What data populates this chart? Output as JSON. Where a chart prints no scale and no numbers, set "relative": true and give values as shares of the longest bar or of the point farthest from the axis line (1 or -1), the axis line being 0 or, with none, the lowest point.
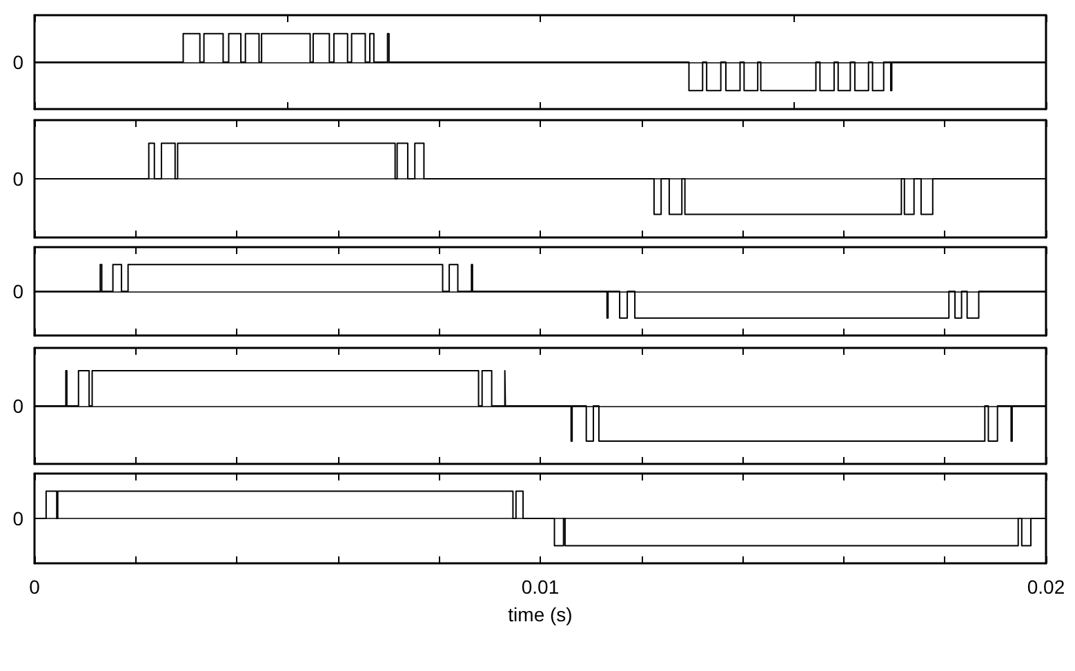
{
  "chart_data": [
    {
      "type": "step",
      "relative": true,
      "xlim": [
        0,
        0.02
      ],
      "xticks": [
        0,
        {
          "value": 0.005,
          "label": null
        },
        0.01,
        {
          "value": 0.015,
          "label": null
        },
        0.02
      ],
      "tick_labels": "y",
      "annotations": [
        "0"
      ],
      "series": [
        {
          "color": "#000000",
          "x": [
            0,
            0.00294,
            0.00327,
            0.00335,
            0.00373,
            0.00384,
            0.00408,
            0.00417,
            0.00444,
            0.00449,
            0.00545,
            0.00551,
            0.00583,
            0.00592,
            0.00619,
            0.00627,
            0.00654,
            0.00663,
            0.00671,
            0.00698,
            0.00701,
            0.01294,
            0.01321,
            0.01329,
            0.01357,
            0.01367,
            0.01395,
            0.01403,
            0.0143,
            0.01436,
            0.01545,
            0.01553,
            0.01581,
            0.01589,
            0.01613,
            0.01622,
            0.01649,
            0.01657,
            0.01679,
            0.01693,
            0.01695,
            0.02
          ],
          "values": [
            0,
            1,
            0,
            1,
            0,
            1,
            0,
            1,
            0,
            1,
            0,
            1,
            0,
            1,
            0,
            1,
            0,
            1,
            0,
            1,
            0,
            -1,
            0,
            -1,
            0,
            -1,
            0,
            -1,
            0,
            -1,
            0,
            -1,
            0,
            -1,
            0,
            -1,
            0,
            -1,
            0,
            -1,
            0,
            0
          ]
        }
      ]
    },
    {
      "type": "step",
      "relative": true,
      "xlim": [
        0,
        0.02
      ],
      "xticks": [
        0,
        {
          "value": 0.002,
          "label": null
        },
        {
          "value": 0.004,
          "label": null
        },
        {
          "value": 0.006,
          "label": null
        },
        {
          "value": 0.008,
          "label": null
        },
        0.01,
        {
          "value": 0.012,
          "label": null
        },
        {
          "value": 0.014,
          "label": null
        },
        {
          "value": 0.016,
          "label": null
        },
        {
          "value": 0.018,
          "label": null
        },
        0.02
      ],
      "tick_labels": "y",
      "annotations": [
        "0"
      ],
      "series": [
        {
          "color": "#000000",
          "x": [
            0,
            0.00226,
            0.00237,
            0.00251,
            0.00278,
            0.00283,
            0.00713,
            0.00717,
            0.00738,
            0.00752,
            0.0077,
            0.01225,
            0.01239,
            0.01255,
            0.0128,
            0.01286,
            0.01714,
            0.0172,
            0.01739,
            0.01753,
            0.01776,
            0.02
          ],
          "values": [
            0,
            1,
            0,
            1,
            0,
            1,
            0,
            1,
            0,
            1,
            0,
            -1,
            0,
            -1,
            0,
            -1,
            0,
            -1,
            0,
            -1,
            0,
            0
          ]
        }
      ]
    },
    {
      "type": "step",
      "relative": true,
      "xlim": [
        0,
        0.02
      ],
      "xticks": [
        0,
        {
          "value": 0.002,
          "label": null
        },
        {
          "value": 0.004,
          "label": null
        },
        {
          "value": 0.006,
          "label": null
        },
        {
          "value": 0.008,
          "label": null
        },
        0.01,
        {
          "value": 0.012,
          "label": null
        },
        {
          "value": 0.014,
          "label": null
        },
        {
          "value": 0.016,
          "label": null
        },
        {
          "value": 0.018,
          "label": null
        },
        0.02
      ],
      "tick_labels": "y",
      "annotations": [
        "0"
      ],
      "series": [
        {
          "color": "#000000",
          "x": [
            0,
            0.0013,
            0.00133,
            0.00155,
            0.00172,
            0.00185,
            0.00807,
            0.0082,
            0.00837,
            0.00864,
            0.00866,
            0.01132,
            0.01134,
            0.01157,
            0.01172,
            0.01187,
            0.01808,
            0.0182,
            0.01833,
            0.01844,
            0.01867,
            0.02
          ],
          "values": [
            0,
            1,
            0,
            1,
            0,
            1,
            0,
            1,
            0,
            1,
            0,
            -1,
            0,
            -1,
            0,
            -1,
            0,
            -1,
            0,
            -1,
            0,
            0
          ]
        }
      ]
    },
    {
      "type": "step",
      "relative": true,
      "xlim": [
        0,
        0.02
      ],
      "xticks": [
        0,
        {
          "value": 0.002,
          "label": null
        },
        {
          "value": 0.004,
          "label": null
        },
        {
          "value": 0.006,
          "label": null
        },
        {
          "value": 0.008,
          "label": null
        },
        0.01,
        {
          "value": 0.012,
          "label": null
        },
        {
          "value": 0.014,
          "label": null
        },
        {
          "value": 0.016,
          "label": null
        },
        {
          "value": 0.018,
          "label": null
        },
        0.02
      ],
      "tick_labels": "y",
      "annotations": [
        "0"
      ],
      "series": [
        {
          "color": "#000000",
          "x": [
            0,
            0.00062,
            0.00064,
            0.00087,
            0.00108,
            0.00114,
            0.00878,
            0.00885,
            0.00904,
            0.0093,
            0.00931,
            0.01061,
            0.01063,
            0.01091,
            0.01105,
            0.01116,
            0.01879,
            0.01886,
            0.01904,
            0.01931,
            0.01933,
            0.02
          ],
          "values": [
            0,
            1,
            0,
            1,
            0,
            1,
            0,
            1,
            0,
            1,
            0,
            -1,
            0,
            -1,
            0,
            -1,
            0,
            -1,
            0,
            -1,
            0,
            0
          ]
        }
      ]
    },
    {
      "type": "step",
      "relative": true,
      "xlabel": "time (s)",
      "xlim": [
        0,
        0.02
      ],
      "xticks": [
        0,
        {
          "value": 0.002,
          "label": null
        },
        {
          "value": 0.004,
          "label": null
        },
        {
          "value": 0.006,
          "label": null
        },
        {
          "value": 0.008,
          "label": null
        },
        0.01,
        {
          "value": 0.012,
          "label": null
        },
        {
          "value": 0.014,
          "label": null
        },
        {
          "value": 0.016,
          "label": null
        },
        {
          "value": 0.018,
          "label": null
        },
        0.02
      ],
      "annotations": [
        "0"
      ],
      "series": [
        {
          "color": "#000000",
          "x": [
            0,
            0.00023,
            0.00044,
            0.00046,
            0.00946,
            0.00952,
            0.00966,
            0.01028,
            0.01046,
            0.01049,
            0.01945,
            0.01952,
            0.0197,
            0.02
          ],
          "values": [
            0,
            1,
            0,
            1,
            0,
            1,
            0,
            -1,
            0,
            -1,
            0,
            -1,
            0,
            0
          ]
        }
      ]
    }
  ]
}
